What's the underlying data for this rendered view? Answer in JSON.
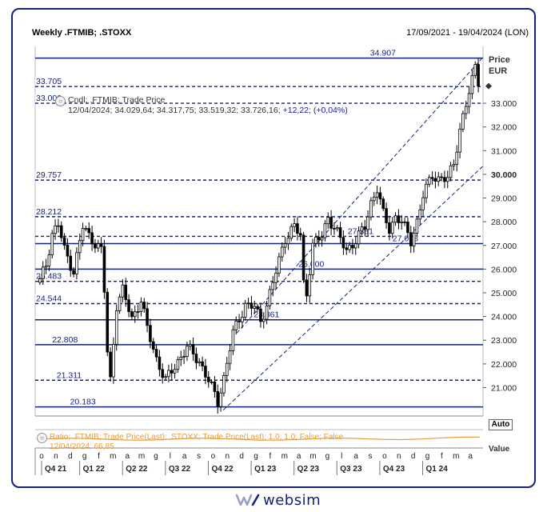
{
  "header": {
    "title": "Weekly .FTMIB; .STOXX",
    "date_range": "17/09/2021 - 19/04/2024 (LON)"
  },
  "axis": {
    "unit_title": "Price",
    "currency": "EUR",
    "auto_label": "Auto",
    "value_label": "Value"
  },
  "legend": {
    "series_label": "Cndl; .FTMIB; Trade Price",
    "date": "12/04/2024;",
    "ohlc": "34.029,64; 34.317,75; 33.519,32; 33.726,16;",
    "change": "+12,22; (+0,04%)",
    "ratio_label": "Ratio; .FTMIB; Trade Price(Last); .STOXX; Trade Price(Last);  1,0; 1,0; False; False",
    "ratio_value": "12/04/2024; 66,85"
  },
  "logo": {
    "text": "websim"
  },
  "colors": {
    "navy": "#16227a",
    "ratio": "#e69b3a",
    "candle": "#000000"
  },
  "chart_data": {
    "type": "candlestick",
    "title": "Weekly .FTMIB; .STOXX",
    "ylabel": "Price EUR",
    "ylim": [
      19800,
      35400
    ],
    "y_ticks": [
      {
        "value": 21000,
        "label": "21.000"
      },
      {
        "value": 22000,
        "label": "22.000"
      },
      {
        "value": 23000,
        "label": "23.000"
      },
      {
        "value": 24000,
        "label": "24.000"
      },
      {
        "value": 25000,
        "label": "25.000"
      },
      {
        "value": 26000,
        "label": "26.000"
      },
      {
        "value": 27000,
        "label": "27.000"
      },
      {
        "value": 28000,
        "label": "28.000"
      },
      {
        "value": 29000,
        "label": "29.000"
      },
      {
        "value": 30000,
        "label": "30.000",
        "bold": true
      },
      {
        "value": 31000,
        "label": "31.000"
      },
      {
        "value": 32000,
        "label": "32.000"
      },
      {
        "value": 33000,
        "label": "33.000"
      }
    ],
    "month_ticks": [
      "o",
      "n",
      "d",
      "g",
      "f",
      "m",
      "a",
      "m",
      "g",
      "l",
      "a",
      "s",
      "o",
      "n",
      "d",
      "g",
      "f",
      "m",
      "a",
      "m",
      "g",
      "l",
      "a",
      "s",
      "o",
      "n",
      "d",
      "g",
      "f",
      "m",
      "a"
    ],
    "quarter_labels": [
      "Q4 21",
      "Q1 22",
      "Q2 22",
      "Q3 22",
      "Q4 22",
      "Q1 23",
      "Q2 23",
      "Q3 23",
      "Q4 23",
      "Q1 24"
    ],
    "levels": [
      {
        "value": 34907,
        "label": "34.907",
        "style": "solid",
        "x0": 0.0,
        "label_pos": 0.78
      },
      {
        "value": 33705,
        "label": "33.705",
        "style": "dashed",
        "x0": 0.0,
        "label_pos": 0.0
      },
      {
        "value": 33000,
        "label": "33.000",
        "style": "dashed",
        "x0": 0.0,
        "label_pos": 0.0
      },
      {
        "value": 29757,
        "label": "29.757",
        "style": "dashed",
        "x0": 0.0,
        "label_pos": 0.0
      },
      {
        "value": 28212,
        "label": "28.212",
        "style": "dashed",
        "x0": 0.0,
        "label_pos": 0.0
      },
      {
        "value": 27381,
        "label": "27.381",
        "style": "dashed",
        "x0": 0.0,
        "label_pos": 0.73
      },
      {
        "value": 27078,
        "label": "27.078",
        "style": "solid",
        "x0": 0.0,
        "label_pos": 0.83
      },
      {
        "value": 26000,
        "label": "26.000",
        "style": "solid",
        "x0": 0.0,
        "label_pos": 0.62
      },
      {
        "value": 25483,
        "label": "25.483",
        "style": "dashed",
        "x0": 0.0,
        "label_pos": 0.0
      },
      {
        "value": 24544,
        "label": "24.544",
        "style": "dashed",
        "x0": 0.0,
        "label_pos": 0.0
      },
      {
        "value": 23861,
        "label": "23.861",
        "style": "solid",
        "x0": 0.0,
        "label_pos": 0.52
      },
      {
        "value": 22808,
        "label": "22.808",
        "style": "solid",
        "x0": 0.0,
        "label_pos": 0.07
      },
      {
        "value": 21311,
        "label": "21.311",
        "style": "dashed",
        "x0": 0.0,
        "label_pos": 0.08
      },
      {
        "value": 20183,
        "label": "20.183",
        "style": "solid",
        "x0": 0.0,
        "label_pos": 0.11
      }
    ],
    "channel": {
      "lower": [
        [
          0.42,
          20050
        ],
        [
          1.0,
          30350
        ]
      ],
      "upper": [
        [
          0.45,
          23300
        ],
        [
          1.0,
          34950
        ]
      ]
    },
    "last_close": 33726.16,
    "anchors": [
      [
        0,
        25500
      ],
      [
        2,
        26200
      ],
      [
        4,
        27500
      ],
      [
        6,
        27900
      ],
      [
        8,
        26800
      ],
      [
        11,
        25900
      ],
      [
        14,
        27800
      ],
      [
        16,
        27400
      ],
      [
        20,
        26800
      ],
      [
        21,
        25100
      ],
      [
        22,
        22500
      ],
      [
        23,
        21300
      ],
      [
        25,
        24500
      ],
      [
        27,
        25100
      ],
      [
        30,
        23900
      ],
      [
        33,
        24700
      ],
      [
        35,
        23500
      ],
      [
        38,
        22200
      ],
      [
        41,
        21300
      ],
      [
        44,
        21900
      ],
      [
        48,
        22700
      ],
      [
        52,
        22100
      ],
      [
        55,
        21300
      ],
      [
        58,
        20400
      ],
      [
        60,
        21400
      ],
      [
        63,
        23300
      ],
      [
        67,
        24500
      ],
      [
        70,
        24400
      ],
      [
        72,
        23800
      ],
      [
        74,
        24500
      ],
      [
        77,
        25900
      ],
      [
        80,
        27300
      ],
      [
        83,
        27800
      ],
      [
        85,
        27400
      ],
      [
        86,
        25400
      ],
      [
        87,
        25000
      ],
      [
        89,
        27000
      ],
      [
        92,
        27400
      ],
      [
        94,
        28200
      ],
      [
        97,
        27500
      ],
      [
        100,
        26800
      ],
      [
        103,
        27200
      ],
      [
        106,
        27800
      ],
      [
        108,
        28800
      ],
      [
        110,
        29400
      ],
      [
        112,
        28300
      ],
      [
        114,
        27700
      ],
      [
        116,
        28200
      ],
      [
        118,
        28000
      ],
      [
        121,
        27200
      ],
      [
        123,
        28000
      ],
      [
        125,
        29100
      ],
      [
        128,
        30000
      ],
      [
        130,
        29800
      ],
      [
        133,
        29800
      ],
      [
        135,
        30500
      ],
      [
        137,
        31900
      ],
      [
        139,
        32900
      ],
      [
        141,
        34000
      ],
      [
        142,
        34600
      ],
      [
        143,
        33726
      ]
    ]
  }
}
